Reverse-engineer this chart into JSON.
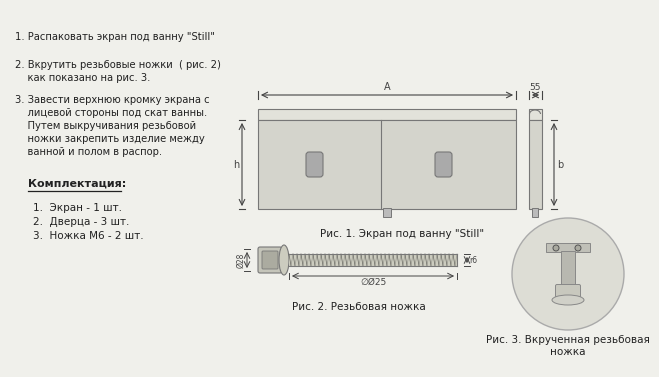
{
  "bg_color": "#f0f0eb",
  "panel_color": "#d4d4cc",
  "panel_top_color": "#e2e2da",
  "panel_border_color": "#777777",
  "text_color": "#222222",
  "dim_color": "#444444",
  "instructions": [
    "1. Распаковать экран под ванну \"Still\"",
    "2. Вкрутить резьбовые ножки  ( рис. 2)",
    "    как показано на рис. 3.",
    "3. Завести верхнюю кромку экрана с",
    "    лицевой стороны под скат ванны.",
    "    Путем выкручивания резьбовой",
    "    ножки закрепить изделие между",
    "    ванной и полом в распор."
  ],
  "kompl_title": "Комплектация:",
  "kompl_items": [
    "1.  Экран - 1 шт.",
    "2.  Дверца - 3 шт.",
    "3.  Ножка M6 - 2 шт."
  ],
  "caption1": "Рис. 1. Экран под ванну \"Still\"",
  "caption2": "Рис. 2. Резьбовая ножка",
  "caption3_l1": "Рис. 3. Вкрученная резьбовая",
  "caption3_l2": "ножка",
  "dim_A": "A",
  "dim_55": "55",
  "dim_h": "h",
  "dim_b": "b",
  "dim_d28": "Ø28",
  "dim_l25": "∅Ø25",
  "dim_r6": "r6"
}
